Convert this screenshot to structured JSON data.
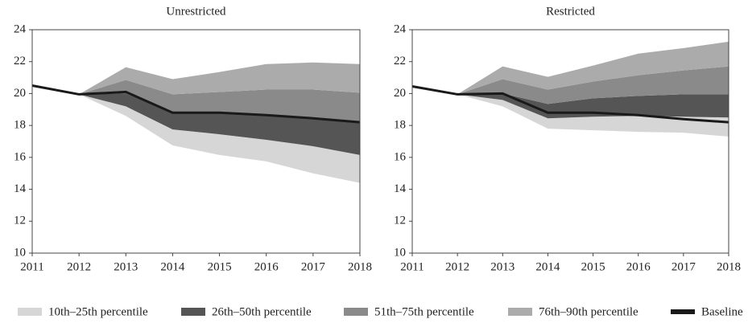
{
  "chart_data": [
    {
      "type": "fan",
      "title": "Unrestricted",
      "x": [
        2011,
        2012,
        2013,
        2014,
        2015,
        2016,
        2017,
        2018
      ],
      "xlim": [
        2011,
        2018
      ],
      "xticks": [
        2011,
        2012,
        2013,
        2014,
        2015,
        2016,
        2017,
        2018
      ],
      "ylim": [
        10,
        24
      ],
      "yticks": [
        10,
        12,
        14,
        16,
        18,
        20,
        22,
        24
      ],
      "series": [
        {
          "name": "10th–25th percentile",
          "color": "#d6d6d6",
          "lower": [
            null,
            19.95,
            18.6,
            16.75,
            16.15,
            15.75,
            15.0,
            14.4
          ],
          "upper": [
            null,
            19.95,
            19.2,
            17.75,
            17.45,
            17.1,
            16.7,
            16.15
          ]
        },
        {
          "name": "26th–50th percentile",
          "color": "#555555",
          "lower": [
            null,
            19.95,
            19.2,
            17.75,
            17.45,
            17.1,
            16.7,
            16.15
          ],
          "upper": [
            null,
            19.95,
            20.0,
            18.8,
            18.8,
            18.65,
            18.45,
            18.2
          ]
        },
        {
          "name": "51th–75th percentile",
          "color": "#8a8a8a",
          "lower": [
            null,
            19.95,
            20.0,
            18.8,
            18.8,
            18.65,
            18.45,
            18.2
          ],
          "upper": [
            null,
            19.95,
            20.85,
            19.95,
            20.1,
            20.25,
            20.25,
            20.05
          ]
        },
        {
          "name": "76th–90th percentile",
          "color": "#ababab",
          "lower": [
            null,
            19.95,
            20.85,
            19.95,
            20.1,
            20.25,
            20.25,
            20.05
          ],
          "upper": [
            null,
            19.95,
            21.65,
            20.9,
            21.35,
            21.85,
            21.95,
            21.85
          ]
        },
        {
          "name": "Baseline",
          "color": "#1a1a1a",
          "values": [
            20.5,
            19.95,
            20.1,
            18.8,
            18.8,
            18.65,
            18.45,
            18.2
          ]
        }
      ]
    },
    {
      "type": "fan",
      "title": "Restricted",
      "x": [
        2011,
        2012,
        2013,
        2014,
        2015,
        2016,
        2017,
        2018
      ],
      "xlim": [
        2011,
        2018
      ],
      "xticks": [
        2011,
        2012,
        2013,
        2014,
        2015,
        2016,
        2017,
        2018
      ],
      "ylim": [
        10,
        24
      ],
      "yticks": [
        10,
        12,
        14,
        16,
        18,
        20,
        22,
        24
      ],
      "series": [
        {
          "color": "#d6d6d6",
          "lower": [
            null,
            19.95,
            19.2,
            17.8,
            17.7,
            17.6,
            17.55,
            17.3
          ],
          "upper": [
            null,
            19.95,
            19.6,
            18.45,
            18.55,
            18.6,
            18.55,
            18.5
          ]
        },
        {
          "color": "#555555",
          "lower": [
            null,
            19.95,
            19.6,
            18.45,
            18.55,
            18.6,
            18.55,
            18.5
          ],
          "upper": [
            null,
            19.95,
            20.0,
            19.35,
            19.7,
            19.85,
            19.95,
            19.95
          ]
        },
        {
          "color": "#8a8a8a",
          "lower": [
            null,
            19.95,
            20.0,
            19.35,
            19.7,
            19.85,
            19.95,
            19.95
          ],
          "upper": [
            null,
            19.95,
            20.9,
            20.25,
            20.75,
            21.15,
            21.45,
            21.7
          ]
        },
        {
          "color": "#ababab",
          "lower": [
            null,
            19.95,
            20.9,
            20.25,
            20.75,
            21.15,
            21.45,
            21.7
          ],
          "upper": [
            null,
            19.95,
            21.7,
            21.05,
            21.75,
            22.5,
            22.85,
            23.25
          ]
        },
        {
          "color": "#1a1a1a",
          "values": [
            20.45,
            19.95,
            20.0,
            18.8,
            18.8,
            18.65,
            18.4,
            18.2
          ]
        }
      ]
    }
  ]
}
